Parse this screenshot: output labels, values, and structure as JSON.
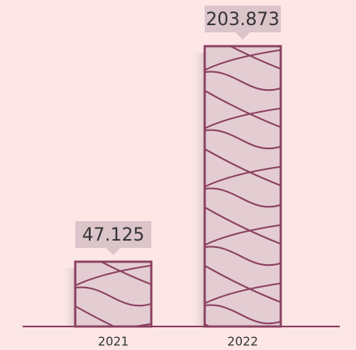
{
  "chart_data": {
    "type": "bar",
    "categories": [
      "2021",
      "2022"
    ],
    "values": [
      47.125,
      203.873
    ],
    "color": "#e3cdd3",
    "line_color": "#8b4060"
  }
}
